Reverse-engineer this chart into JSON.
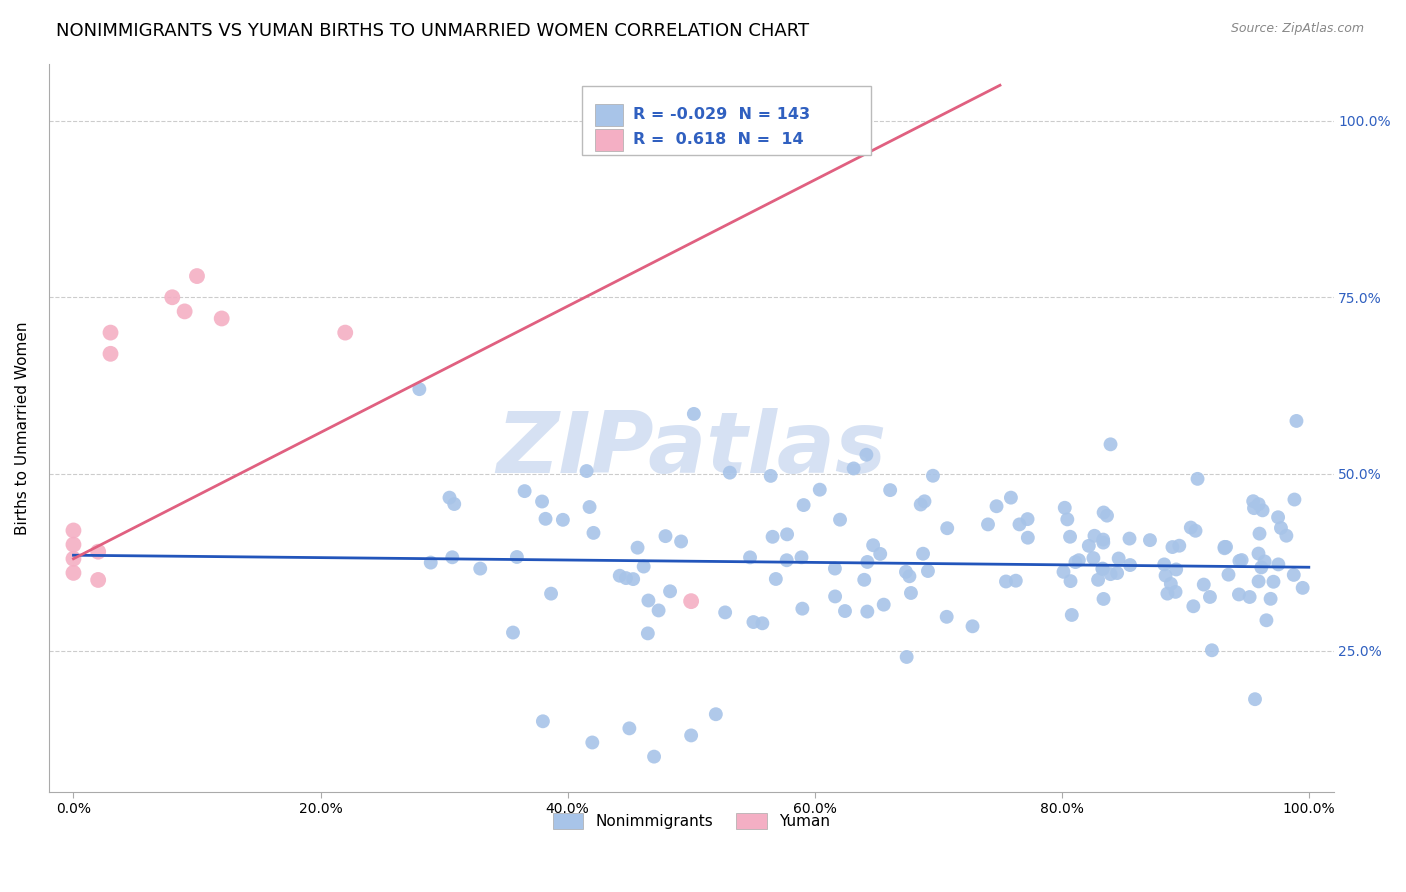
{
  "title": "NONIMMIGRANTS VS YUMAN BIRTHS TO UNMARRIED WOMEN CORRELATION CHART",
  "source": "Source: ZipAtlas.com",
  "ylabel": "Births to Unmarried Women",
  "x_tick_labels": [
    "0.0%",
    "20.0%",
    "40.0%",
    "60.0%",
    "80.0%",
    "100.0%"
  ],
  "x_tick_values": [
    0.0,
    0.2,
    0.4,
    0.6,
    0.8,
    1.0
  ],
  "y_tick_labels": [
    "25.0%",
    "50.0%",
    "75.0%",
    "100.0%"
  ],
  "y_tick_values": [
    0.25,
    0.5,
    0.75,
    1.0
  ],
  "xlim": [
    -0.02,
    1.02
  ],
  "ylim": [
    0.05,
    1.08
  ],
  "blue_color": "#a8c4e8",
  "pink_color": "#f4afc4",
  "blue_line_color": "#2255bb",
  "pink_line_color": "#e06080",
  "blue_line_x": [
    0.0,
    1.0
  ],
  "blue_line_y": [
    0.385,
    0.368
  ],
  "pink_line_x": [
    0.0,
    0.75
  ],
  "pink_line_y": [
    0.38,
    1.05
  ],
  "legend_R_blue": "-0.029",
  "legend_N_blue": "143",
  "legend_R_pink": "0.618",
  "legend_N_pink": "14",
  "watermark": "ZIPatlas",
  "watermark_color": "#c5d5ee",
  "label_nonimmigrants": "Nonimmigrants",
  "label_yuman": "Yuman",
  "title_fontsize": 13,
  "axis_label_fontsize": 11,
  "right_tick_color": "#3060c0"
}
